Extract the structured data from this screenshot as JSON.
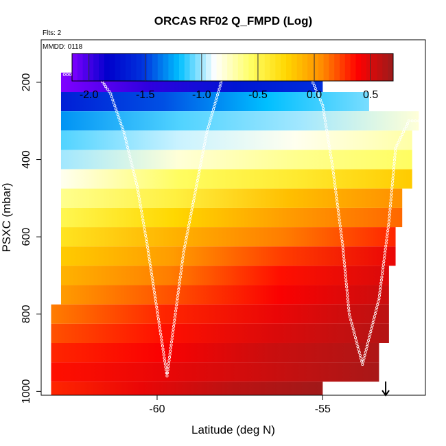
{
  "chart_data": {
    "type": "heatmap",
    "title": "ORCAS RF02 Q_FMPD (Log)",
    "flights_note": "Flts: 2",
    "date_note": "MMDD: 0118",
    "xlabel": "Latitude (deg N)",
    "ylabel": "PSXC (mbar)",
    "xlim": [
      -63.5,
      -51.9
    ],
    "ylim": [
      1010,
      90
    ],
    "y_reversed": true,
    "xticks": [
      -60,
      -55
    ],
    "xtick_labels": [
      "-60",
      "-55"
    ],
    "yticks": [
      200,
      400,
      600,
      800,
      1000
    ],
    "ytick_labels": [
      "200",
      "400",
      "600",
      "800",
      "1000"
    ],
    "colorbar": {
      "min": -2.15,
      "max": 0.7,
      "ticks": [
        -2.0,
        -1.5,
        -1.0,
        -0.5,
        0.0,
        0.5
      ],
      "tick_labels": [
        "-2.0",
        "-1.5",
        "-1.0",
        "-0.5",
        "0.0",
        "0.5"
      ],
      "colors": [
        "#7f00ff",
        "#0000cc",
        "#0033dd",
        "#00bfff",
        "#ffffff",
        "#ffff66",
        "#ffd700",
        "#ff8c00",
        "#ff0000",
        "#9b1b1b"
      ]
    },
    "pressure_bands": [
      {
        "p": [
          175,
          225
        ],
        "lat": [
          -62.9,
          -55.0
        ],
        "value": [
          -2.15,
          -1.95,
          -1.7,
          -1.55
        ]
      },
      {
        "p": [
          225,
          275
        ],
        "lat": [
          -62.9,
          -53.6
        ],
        "value": [
          -1.65,
          -1.45,
          -1.2,
          -1.05
        ]
      },
      {
        "p": [
          275,
          325
        ],
        "lat": [
          -62.9,
          -52.1
        ],
        "value": [
          -1.3,
          -1.1,
          -1.0,
          -0.8
        ]
      },
      {
        "p": [
          325,
          375
        ],
        "lat": [
          -62.9,
          -52.3
        ],
        "value": [
          -1.1,
          -0.95,
          -0.85,
          -0.7
        ]
      },
      {
        "p": [
          375,
          425
        ],
        "lat": [
          -62.9,
          -52.3
        ],
        "value": [
          -1.0,
          -0.8,
          -0.65,
          -0.55
        ]
      },
      {
        "p": [
          425,
          475
        ],
        "lat": [
          -62.9,
          -52.3
        ],
        "value": [
          -0.85,
          -0.55,
          -0.4,
          -0.2
        ]
      },
      {
        "p": [
          475,
          525
        ],
        "lat": [
          -62.9,
          -52.6
        ],
        "value": [
          -0.65,
          -0.45,
          -0.15,
          0.05
        ]
      },
      {
        "p": [
          525,
          575
        ],
        "lat": [
          -62.9,
          -52.6
        ],
        "value": [
          -0.5,
          -0.25,
          0.0,
          0.15
        ]
      },
      {
        "p": [
          575,
          625
        ],
        "lat": [
          -62.9,
          -52.8
        ],
        "value": [
          -0.35,
          -0.1,
          0.1,
          0.3
        ]
      },
      {
        "p": [
          625,
          675
        ],
        "lat": [
          -62.9,
          -52.8
        ],
        "value": [
          -0.2,
          0.0,
          0.25,
          0.45
        ]
      },
      {
        "p": [
          675,
          725
        ],
        "lat": [
          -62.9,
          -53.0
        ],
        "value": [
          -0.1,
          0.1,
          0.35,
          0.5
        ]
      },
      {
        "p": [
          725,
          775
        ],
        "lat": [
          -62.9,
          -53.0
        ],
        "value": [
          0.0,
          0.2,
          0.4,
          0.55
        ]
      },
      {
        "p": [
          775,
          825
        ],
        "lat": [
          -63.2,
          -53.0
        ],
        "value": [
          0.1,
          0.3,
          0.45,
          0.6
        ]
      },
      {
        "p": [
          825,
          875
        ],
        "lat": [
          -63.2,
          -53.0
        ],
        "value": [
          0.2,
          0.35,
          0.5,
          0.62
        ]
      },
      {
        "p": [
          875,
          925
        ],
        "lat": [
          -63.2,
          -53.3
        ],
        "value": [
          0.3,
          0.4,
          0.55,
          0.64
        ]
      },
      {
        "p": [
          925,
          975
        ],
        "lat": [
          -63.2,
          -53.3
        ],
        "value": [
          0.35,
          0.45,
          0.55,
          0.66
        ]
      },
      {
        "p": [
          975,
          1010
        ],
        "lat": [
          -63.2,
          -55.0
        ],
        "value": [
          0.3,
          0.45,
          0.6,
          0.68
        ]
      }
    ],
    "flight_track": [
      {
        "lat": -62.8,
        "p": 180
      },
      {
        "lat": -61.8,
        "p": 180
      },
      {
        "lat": -61.4,
        "p": 230
      },
      {
        "lat": -61.0,
        "p": 330
      },
      {
        "lat": -60.6,
        "p": 470
      },
      {
        "lat": -60.3,
        "p": 620
      },
      {
        "lat": -60.0,
        "p": 790
      },
      {
        "lat": -59.7,
        "p": 960
      },
      {
        "lat": -59.2,
        "p": 640
      },
      {
        "lat": -58.5,
        "p": 330
      },
      {
        "lat": -58.0,
        "p": 180
      },
      {
        "lat": -55.4,
        "p": 180
      },
      {
        "lat": -55.0,
        "p": 260
      },
      {
        "lat": -54.7,
        "p": 420
      },
      {
        "lat": -54.4,
        "p": 620
      },
      {
        "lat": -54.2,
        "p": 800
      },
      {
        "lat": -53.8,
        "p": 930
      },
      {
        "lat": -53.3,
        "p": 760
      },
      {
        "lat": -53.0,
        "p": 560
      },
      {
        "lat": -52.8,
        "p": 370
      },
      {
        "lat": -52.4,
        "p": 300
      },
      {
        "lat": -52.1,
        "p": 300
      }
    ],
    "arrow_marker": {
      "lat": -53.1,
      "direction": "down"
    }
  }
}
